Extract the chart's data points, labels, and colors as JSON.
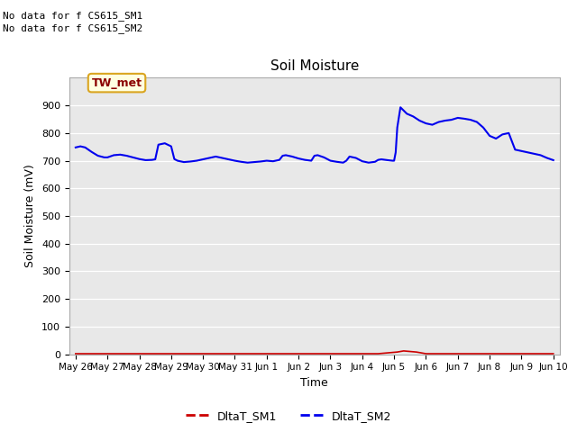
{
  "title": "Soil Moisture",
  "xlabel": "Time",
  "ylabel": "Soil Moisture (mV)",
  "ylim": [
    0,
    1000
  ],
  "yticks": [
    0,
    100,
    200,
    300,
    400,
    500,
    600,
    700,
    800,
    900
  ],
  "bg_color": "#E8E8E8",
  "fig_bg_color": "#FFFFFF",
  "no_data_text1": "No data for f CS615_SM1",
  "no_data_text2": "No data for f CS615_SM2",
  "tw_met_label": "TW_met",
  "sm1_color": "#CC0000",
  "sm2_color": "#0000EE",
  "x_tick_labels": [
    "May 26",
    "May 27",
    "May 28",
    "May 29",
    "May 30",
    "May 31",
    "Jun 1",
    "Jun 2",
    "Jun 3",
    "Jun 4",
    "Jun 5",
    "Jun 6",
    "Jun 7",
    "Jun 8",
    "Jun 9",
    "Jun 10"
  ],
  "sm2_x": [
    0.0,
    0.15,
    0.3,
    0.5,
    0.7,
    0.9,
    1.0,
    1.2,
    1.4,
    1.6,
    1.8,
    2.0,
    2.2,
    2.4,
    2.5,
    2.6,
    2.8,
    3.0,
    3.1,
    3.15,
    3.2,
    3.4,
    3.6,
    3.8,
    4.0,
    4.2,
    4.4,
    4.6,
    4.8,
    5.0,
    5.2,
    5.4,
    5.6,
    5.8,
    6.0,
    6.2,
    6.4,
    6.5,
    6.6,
    6.8,
    7.0,
    7.2,
    7.4,
    7.5,
    7.6,
    7.8,
    8.0,
    8.2,
    8.4,
    8.5,
    8.6,
    8.8,
    9.0,
    9.2,
    9.4,
    9.5,
    9.6,
    9.8,
    9.95,
    10.0,
    10.05,
    10.1,
    10.2,
    10.4,
    10.6,
    10.8,
    11.0,
    11.2,
    11.4,
    11.6,
    11.8,
    12.0,
    12.2,
    12.4,
    12.6,
    12.8,
    13.0,
    13.2,
    13.4,
    13.6,
    13.8,
    14.0,
    14.2,
    14.4,
    14.6,
    14.8,
    15.0
  ],
  "sm2_y": [
    748,
    752,
    748,
    732,
    718,
    712,
    712,
    720,
    722,
    718,
    712,
    706,
    702,
    703,
    705,
    758,
    763,
    752,
    706,
    703,
    700,
    695,
    697,
    700,
    705,
    710,
    715,
    710,
    705,
    700,
    696,
    693,
    695,
    697,
    700,
    698,
    703,
    718,
    720,
    715,
    708,
    703,
    700,
    718,
    720,
    712,
    700,
    696,
    693,
    700,
    715,
    710,
    698,
    693,
    696,
    703,
    705,
    702,
    700,
    700,
    730,
    820,
    893,
    870,
    860,
    845,
    835,
    830,
    840,
    845,
    848,
    855,
    852,
    848,
    840,
    820,
    790,
    780,
    795,
    800,
    740,
    735,
    730,
    725,
    720,
    710,
    702
  ],
  "sm1_x": [
    0.0,
    2.5,
    5.0,
    7.5,
    9.5,
    10.1,
    10.3,
    10.5,
    10.7,
    11.0,
    12.0,
    13.5,
    15.0
  ],
  "sm1_y": [
    2,
    2,
    2,
    2,
    2,
    8,
    12,
    10,
    8,
    2,
    2,
    2,
    2
  ]
}
